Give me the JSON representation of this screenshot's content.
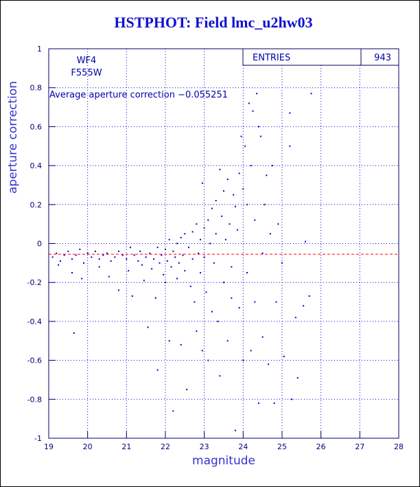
{
  "chart_data": {
    "type": "scatter",
    "title": "HSTPHOT: Field lmc_u2hw03",
    "x_label": "magnitude",
    "y_label": "aperture correction",
    "annotations": [
      "WF4",
      "F555W",
      "Average aperture correction −0.055251"
    ],
    "mean": -0.055251,
    "mean_color": "#ff0000",
    "stats": {
      "label": "ENTRIES",
      "value": 943
    },
    "grid": true,
    "xlim": [
      19,
      28
    ],
    "ylim": [
      -1,
      1
    ],
    "xticks": [
      19,
      20,
      21,
      22,
      23,
      24,
      25,
      26,
      27,
      28
    ],
    "yticks": [
      -1,
      -0.8,
      -0.6,
      -0.4,
      -0.2,
      0,
      0.2,
      0.4,
      0.6,
      0.8,
      1
    ],
    "series": [
      {
        "color": "#0000cc",
        "x": [
          19.1,
          19.2,
          19.3,
          19.4,
          19.5,
          19.6,
          19.7,
          19.8,
          19.9,
          20.0,
          20.1,
          20.2,
          20.3,
          20.4,
          20.5,
          20.6,
          20.7,
          20.8,
          20.9,
          21.0,
          19.25,
          19.6,
          19.65,
          19.85,
          20.3,
          20.55,
          20.8,
          21.05,
          21.1,
          21.15,
          21.2,
          21.3,
          21.35,
          21.4,
          21.45,
          21.5,
          21.55,
          21.6,
          21.65,
          21.7,
          21.75,
          21.8,
          21.8,
          21.85,
          21.9,
          21.95,
          22.0,
          22.0,
          22.05,
          22.1,
          22.1,
          22.15,
          22.2,
          22.2,
          22.25,
          22.3,
          22.3,
          22.35,
          22.4,
          22.4,
          22.45,
          22.5,
          22.5,
          22.55,
          22.6,
          22.65,
          22.7,
          22.7,
          22.75,
          22.8,
          22.8,
          22.85,
          22.9,
          22.9,
          22.95,
          22.95,
          23.0,
          23.0,
          23.05,
          23.1,
          23.1,
          23.15,
          23.2,
          23.2,
          23.25,
          23.3,
          23.3,
          23.35,
          23.4,
          23.4,
          23.45,
          23.5,
          23.5,
          23.55,
          23.6,
          23.6,
          23.65,
          23.7,
          23.7,
          23.75,
          23.8,
          23.8,
          23.85,
          23.9,
          23.9,
          23.95,
          24.0,
          24.0,
          24.05,
          24.1,
          24.1,
          24.15,
          24.2,
          24.2,
          24.25,
          24.3,
          24.3,
          24.35,
          24.4,
          24.4,
          24.45,
          24.5,
          24.5,
          24.55,
          24.6,
          24.65,
          24.7,
          24.75,
          24.8,
          24.85,
          24.9,
          25.0,
          25.05,
          25.2,
          25.2,
          25.25,
          25.35,
          25.4,
          25.55,
          25.6,
          25.7,
          25.75
        ],
        "values": [
          -0.07,
          -0.05,
          -0.09,
          -0.06,
          -0.04,
          -0.08,
          -0.06,
          -0.03,
          -0.1,
          -0.05,
          -0.07,
          -0.04,
          -0.08,
          -0.06,
          -0.05,
          -0.09,
          -0.07,
          -0.04,
          -0.06,
          -0.08,
          -0.11,
          -0.15,
          -0.46,
          -0.18,
          -0.12,
          -0.17,
          -0.24,
          -0.14,
          -0.02,
          -0.27,
          -0.06,
          -0.09,
          -0.04,
          -0.11,
          -0.19,
          -0.07,
          -0.43,
          -0.05,
          -0.13,
          -0.08,
          -0.28,
          -0.02,
          -0.65,
          -0.1,
          -0.06,
          -0.16,
          -0.03,
          -0.2,
          -0.09,
          0.02,
          -0.5,
          -0.12,
          -0.04,
          -0.86,
          -0.07,
          0.0,
          -0.18,
          -0.1,
          0.03,
          -0.52,
          -0.06,
          -0.14,
          0.05,
          -0.75,
          -0.02,
          -0.22,
          0.06,
          -0.08,
          -0.3,
          0.1,
          -0.45,
          -0.05,
          0.02,
          -0.15,
          0.31,
          -0.55,
          -0.07,
          0.08,
          -0.25,
          0.12,
          -0.6,
          0.0,
          0.18,
          -0.35,
          -0.1,
          0.22,
          0.05,
          -0.4,
          0.38,
          -0.68,
          0.14,
          -0.2,
          0.27,
          0.02,
          -0.5,
          0.33,
          0.1,
          -0.12,
          -0.28,
          0.25,
          -0.96,
          0.19,
          0.07,
          -0.33,
          0.36,
          0.55,
          -0.6,
          0.28,
          0.5,
          -0.15,
          0.2,
          0.72,
          -0.55,
          0.4,
          0.68,
          -0.3,
          0.12,
          0.77,
          -0.82,
          0.6,
          0.55,
          -0.48,
          -0.05,
          0.2,
          0.35,
          -0.62,
          0.05,
          0.4,
          -0.82,
          -0.3,
          0.1,
          -0.1,
          -0.58,
          0.5,
          0.67,
          -0.8,
          -0.38,
          -0.69,
          -0.32,
          0.01,
          -0.27,
          0.77
        ]
      }
    ]
  }
}
